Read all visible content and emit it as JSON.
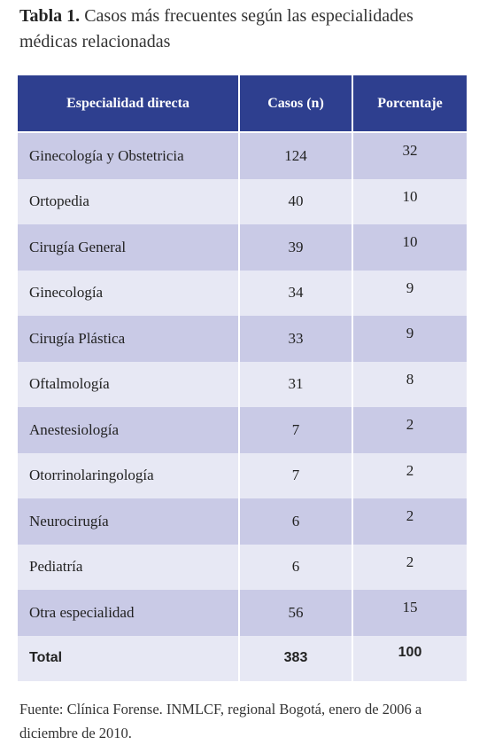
{
  "title": {
    "label": "Tabla 1.",
    "text": "Casos más frecuentes según las especialidades médicas relacionadas"
  },
  "table": {
    "header": [
      "Especialidad directa",
      "Casos (n)",
      "Porcentaje"
    ],
    "rows": [
      [
        "Ginecología y Obstetricia",
        124,
        32
      ],
      [
        "Ortopedia",
        40,
        10
      ],
      [
        "Cirugía General",
        39,
        10
      ],
      [
        "Ginecología",
        34,
        9
      ],
      [
        "Cirugía Plástica",
        33,
        9
      ],
      [
        "Oftalmología",
        31,
        8
      ],
      [
        "Anestesiología",
        7,
        2
      ],
      [
        "Otorrinolaringología",
        7,
        2
      ],
      [
        "Neurocirugía",
        6,
        2
      ],
      [
        "Pediatría",
        6,
        2
      ],
      [
        "Otra especialidad",
        56,
        15
      ],
      [
        "Total",
        383,
        100
      ]
    ]
  },
  "footer": "Fuente: Clínica Forense. INMLCF, regional Bogotá, enero de 2006 a diciembre de 2010."
}
